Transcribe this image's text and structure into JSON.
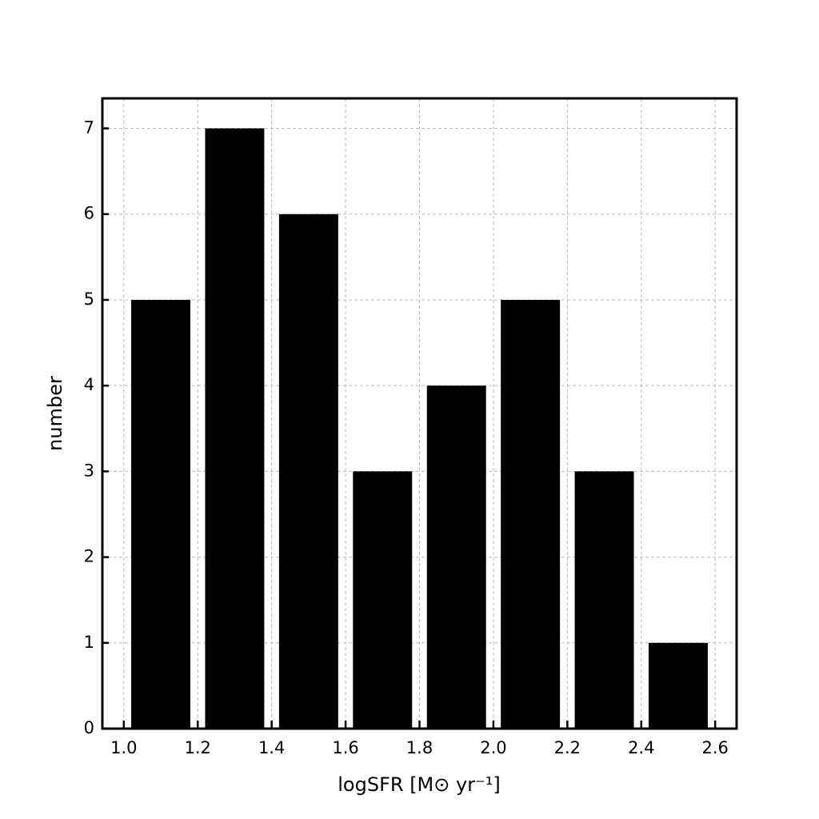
{
  "chart_data": {
    "type": "histogram",
    "xlabel": "logSFR [M⊙ yr⁻¹]",
    "ylabel": "number",
    "bins": [
      1.0,
      1.2,
      1.4,
      1.6,
      1.8,
      2.0,
      2.2,
      2.4,
      2.6
    ],
    "values": [
      5,
      7,
      6,
      3,
      4,
      5,
      3,
      1
    ],
    "color": "#000000",
    "xlim": [
      0.942,
      2.658
    ],
    "ylim": [
      0,
      7.35
    ],
    "xticks": [
      {
        "value": 1.0,
        "label": "1.0"
      },
      1.2,
      1.4,
      1.6,
      1.8,
      {
        "value": 2.0,
        "label": "2.0"
      },
      2.2,
      2.4,
      2.6
    ],
    "yticks": [
      0,
      1,
      2,
      3,
      4,
      5,
      6,
      7
    ],
    "grid": true
  }
}
